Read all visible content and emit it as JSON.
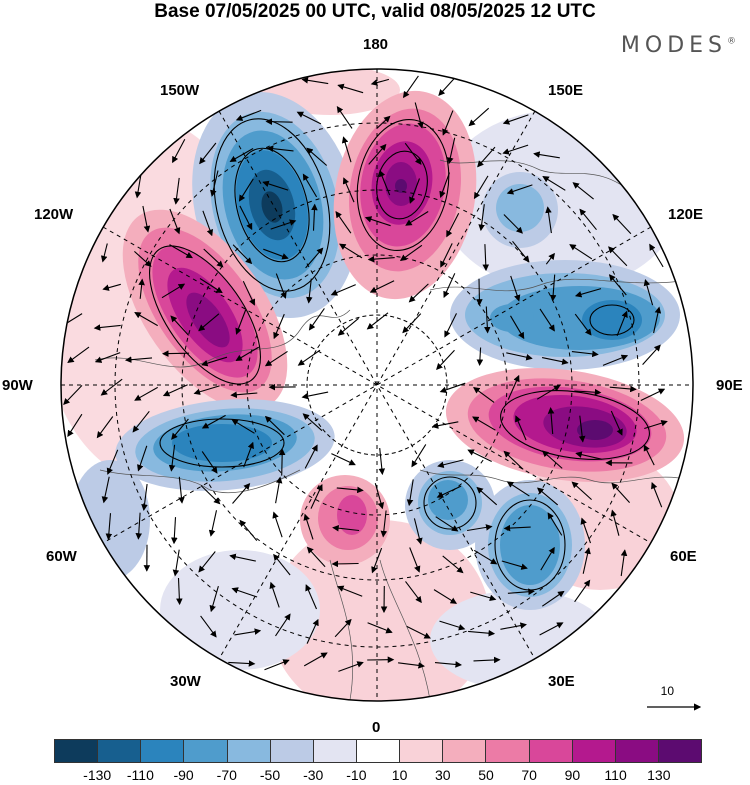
{
  "title": "Base 07/05/2025 00 UTC, valid 08/05/2025 12 UTC",
  "logo": "MODES",
  "logo_mark": "®",
  "longitude_labels": {
    "lon_180": "180",
    "lon_150e": "150E",
    "lon_120e": "120E",
    "lon_90e": "90E",
    "lon_60e": "60E",
    "lon_30e": "30E",
    "lon_0": "0",
    "lon_30w": "30W",
    "lon_60w": "60W",
    "lon_90w": "90W",
    "lon_120w": "120W",
    "lon_150w": "150W"
  },
  "reference_vector": {
    "label": "10"
  },
  "colorbar": {
    "colors": [
      "#0d3b5c",
      "#175f8f",
      "#2b84bd",
      "#4f9ccc",
      "#88b9df",
      "#bccbe6",
      "#e3e4f2",
      "#ffffff",
      "#f9d2d8",
      "#f4aebd",
      "#ec7ba6",
      "#d9479a",
      "#b4198e",
      "#8a0c82",
      "#5c0b70"
    ],
    "tick_labels": [
      "-130",
      "-110",
      "-90",
      "-70",
      "-50",
      "-30",
      "-10",
      "10",
      "30",
      "50",
      "70",
      "90",
      "110",
      "130"
    ]
  }
}
